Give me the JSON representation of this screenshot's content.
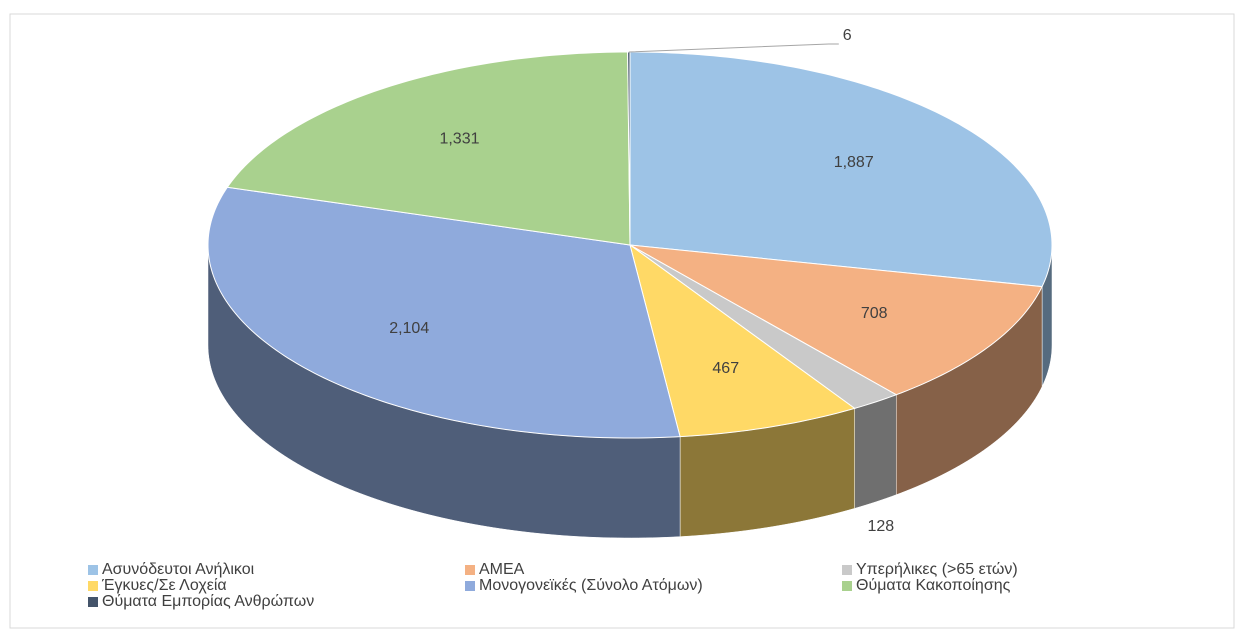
{
  "chart_data": {
    "type": "pie3d",
    "categories": [
      "Ασυνόδευτοι Ανήλικοι",
      "ΑΜΕΑ",
      "Υπερήλικες (>65 ετών)",
      "Έγκυες/Σε Λοχεία",
      "Μονογονεϊκές (Σύνολο Ατόμων)",
      "Θύματα Κακοποίησης",
      "Θύματα Εμπορίας Ανθρώπων"
    ],
    "values": [
      1887,
      708,
      128,
      467,
      2104,
      1331,
      6
    ],
    "value_labels": [
      "1,887",
      "708",
      "128",
      "467",
      "2,104",
      "1,331",
      "6"
    ],
    "colors": [
      "#9dc3e6",
      "#f4b183",
      "#c9c9c9",
      "#ffd966",
      "#8faadc",
      "#a9d18e",
      "#44546a"
    ],
    "legend": "bottom"
  }
}
